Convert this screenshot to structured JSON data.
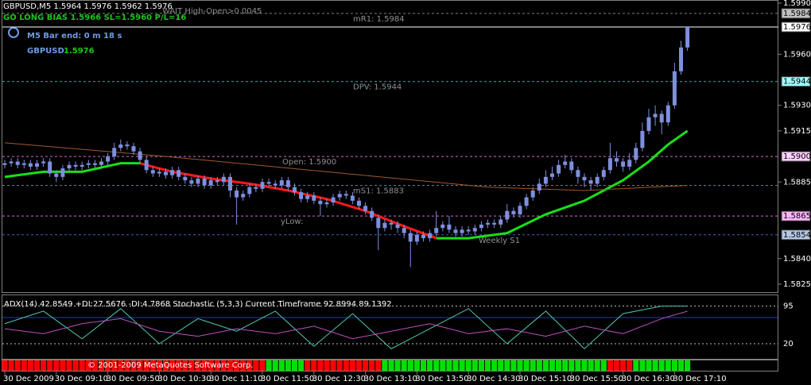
{
  "chart_data": {
    "type": "candlestick",
    "title": "GBPUSD,M5  1.5964 1.5976 1.5962 1.5976",
    "annotations": [
      {
        "text": "WAIT High-Open>0.0045",
        "color": "#8c8c8c"
      },
      {
        "text": "GO LONG BIAS 1.5966 SL=1.5960 P/L=16",
        "color": "#18c818"
      },
      {
        "text": "M5 Bar end: 0 m 18 s",
        "color": "#6f9be6"
      },
      {
        "text": "GBPUSD",
        "color": "#6f9be6"
      },
      {
        "text": "1.5976",
        "color": "#18c818"
      }
    ],
    "color": "#7f8fdf",
    "ylim": [
      1.5825,
      1.599
    ],
    "yticks": [
      {
        "value": 1.599,
        "label": "1.5990"
      },
      {
        "value": 1.596,
        "label": "1.5960"
      },
      {
        "value": 1.593,
        "label": "1.5930"
      },
      {
        "value": 1.5915,
        "label": "1.5915"
      },
      {
        "value": 1.5885,
        "label": "1.5885"
      },
      {
        "value": 1.584,
        "label": "1.5840"
      },
      {
        "value": 1.5825,
        "label": "1.5825"
      }
    ],
    "markers": [
      {
        "value": 1.5984,
        "label": "1.5984",
        "color": "#c0c0c0"
      },
      {
        "value": 1.5976,
        "label": "1.5976",
        "color": "#ffffff"
      },
      {
        "value": 1.5944,
        "label": "1.5944",
        "color": "#a0ffff"
      },
      {
        "value": 1.59,
        "label": "1.5900",
        "color": "#ffd0ff"
      },
      {
        "value": 1.5865,
        "label": "1.5865",
        "color": "#ffb4ff"
      },
      {
        "value": 1.5854,
        "label": "1.5854",
        "color": "#b4c8e6"
      }
    ],
    "levels": [
      {
        "value": 1.5984,
        "label": "mR1: 1.5984",
        "color": "#808080",
        "lx": 480
      },
      {
        "value": 1.5976,
        "color": "#ffffff"
      },
      {
        "value": 1.5944,
        "label": "DPV: 1.5944",
        "color": "#30b0b0"
      },
      {
        "value": 1.59,
        "label": "Open: 1.5900",
        "color": "#d070d0"
      },
      {
        "value": 1.5883,
        "label": "mS1: 1.5883",
        "color": "#7080a0"
      },
      {
        "value": 1.5865,
        "label": "yLow:",
        "color": "#d070d0"
      },
      {
        "value": 1.5854,
        "label": "Weekly S1",
        "color": "#4060c0"
      }
    ],
    "x_labels": [
      "30 Dec 2009",
      "30 Dec 09:10",
      "30 Dec 09:50",
      "30 Dec 10:30",
      "30 Dec 11:10",
      "30 Dec 11:50",
      "30 Dec 12:30",
      "30 Dec 13:10",
      "30 Dec 13:50",
      "30 Dec 14:30",
      "30 Dec 15:10",
      "30 Dec 15:50",
      "30 Dec 16:30",
      "30 Dec 17:10"
    ],
    "ohlc": [
      [
        1.5895,
        1.5898,
        1.5893,
        1.5896
      ],
      [
        1.5896,
        1.5899,
        1.5894,
        1.5897
      ],
      [
        1.5897,
        1.5899,
        1.5893,
        1.5895
      ],
      [
        1.5895,
        1.5898,
        1.5893,
        1.5896
      ],
      [
        1.5896,
        1.5898,
        1.5892,
        1.5894
      ],
      [
        1.5894,
        1.5898,
        1.5892,
        1.5896
      ],
      [
        1.5896,
        1.5899,
        1.5894,
        1.5897
      ],
      [
        1.5897,
        1.5899,
        1.5888,
        1.589
      ],
      [
        1.589,
        1.5892,
        1.5885,
        1.5888
      ],
      [
        1.5888,
        1.5895,
        1.5886,
        1.5893
      ],
      [
        1.5893,
        1.5897,
        1.5891,
        1.5895
      ],
      [
        1.5895,
        1.5897,
        1.5892,
        1.5894
      ],
      [
        1.5894,
        1.5897,
        1.5892,
        1.5895
      ],
      [
        1.5895,
        1.5898,
        1.5893,
        1.5896
      ],
      [
        1.5896,
        1.5898,
        1.5893,
        1.5895
      ],
      [
        1.5895,
        1.5899,
        1.5893,
        1.5897
      ],
      [
        1.5897,
        1.5902,
        1.5895,
        1.59
      ],
      [
        1.59,
        1.5908,
        1.5898,
        1.5905
      ],
      [
        1.5905,
        1.591,
        1.5903,
        1.5907
      ],
      [
        1.5907,
        1.5909,
        1.5904,
        1.5906
      ],
      [
        1.5906,
        1.5908,
        1.5901,
        1.5903
      ],
      [
        1.5903,
        1.5905,
        1.5896,
        1.5898
      ],
      [
        1.5898,
        1.59,
        1.589,
        1.5892
      ],
      [
        1.5892,
        1.5894,
        1.5888,
        1.589
      ],
      [
        1.589,
        1.5893,
        1.5888,
        1.5891
      ],
      [
        1.5891,
        1.5893,
        1.5887,
        1.5889
      ],
      [
        1.5889,
        1.5894,
        1.5887,
        1.5892
      ],
      [
        1.5892,
        1.5894,
        1.5886,
        1.5888
      ],
      [
        1.5888,
        1.589,
        1.5884,
        1.5886
      ],
      [
        1.5886,
        1.5888,
        1.5882,
        1.5884
      ],
      [
        1.5884,
        1.5889,
        1.5882,
        1.5887
      ],
      [
        1.5887,
        1.5889,
        1.5881,
        1.5883
      ],
      [
        1.5883,
        1.5888,
        1.5881,
        1.5886
      ],
      [
        1.5886,
        1.5888,
        1.5883,
        1.5885
      ],
      [
        1.5885,
        1.589,
        1.5883,
        1.5888
      ],
      [
        1.5888,
        1.589,
        1.5876,
        1.588
      ],
      [
        1.588,
        1.5882,
        1.586,
        1.5876
      ],
      [
        1.5876,
        1.588,
        1.5874,
        1.5878
      ],
      [
        1.5878,
        1.5884,
        1.5876,
        1.5882
      ],
      [
        1.5882,
        1.5884,
        1.5879,
        1.5881
      ],
      [
        1.5881,
        1.5887,
        1.5879,
        1.5885
      ],
      [
        1.5885,
        1.5887,
        1.5882,
        1.5884
      ],
      [
        1.5884,
        1.5886,
        1.5881,
        1.5883
      ],
      [
        1.5883,
        1.5888,
        1.5881,
        1.5886
      ],
      [
        1.5886,
        1.5888,
        1.588,
        1.5882
      ],
      [
        1.5882,
        1.5884,
        1.5877,
        1.5879
      ],
      [
        1.5879,
        1.5881,
        1.5873,
        1.5875
      ],
      [
        1.5875,
        1.5879,
        1.5873,
        1.5877
      ],
      [
        1.5877,
        1.5879,
        1.5872,
        1.5874
      ],
      [
        1.5874,
        1.5876,
        1.5865,
        1.5872
      ],
      [
        1.5872,
        1.5875,
        1.587,
        1.5873
      ],
      [
        1.5873,
        1.5878,
        1.5871,
        1.5876
      ],
      [
        1.5876,
        1.588,
        1.5874,
        1.5878
      ],
      [
        1.5878,
        1.588,
        1.5875,
        1.5877
      ],
      [
        1.5877,
        1.5879,
        1.5872,
        1.5874
      ],
      [
        1.5874,
        1.5876,
        1.5869,
        1.5871
      ],
      [
        1.5871,
        1.5873,
        1.5866,
        1.5868
      ],
      [
        1.5868,
        1.587,
        1.5862,
        1.5864
      ],
      [
        1.5864,
        1.5866,
        1.5845,
        1.5858
      ],
      [
        1.5858,
        1.5863,
        1.5856,
        1.5861
      ],
      [
        1.5861,
        1.5863,
        1.5857,
        1.586
      ],
      [
        1.586,
        1.5862,
        1.5855,
        1.5858
      ],
      [
        1.5858,
        1.586,
        1.5852,
        1.5855
      ],
      [
        1.5855,
        1.5857,
        1.5835,
        1.585
      ],
      [
        1.585,
        1.5856,
        1.5848,
        1.5854
      ],
      [
        1.5854,
        1.5856,
        1.585,
        1.5852
      ],
      [
        1.5852,
        1.5857,
        1.585,
        1.5855
      ],
      [
        1.5855,
        1.5868,
        1.5853,
        1.5858
      ],
      [
        1.5858,
        1.5862,
        1.5856,
        1.586
      ],
      [
        1.586,
        1.5865,
        1.5855,
        1.5857
      ],
      [
        1.5857,
        1.5859,
        1.5853,
        1.5855
      ],
      [
        1.5855,
        1.5859,
        1.5853,
        1.5857
      ],
      [
        1.5857,
        1.5859,
        1.5854,
        1.5856
      ],
      [
        1.5856,
        1.586,
        1.5854,
        1.5858
      ],
      [
        1.5858,
        1.5862,
        1.5856,
        1.586
      ],
      [
        1.586,
        1.5863,
        1.5858,
        1.5861
      ],
      [
        1.5861,
        1.5863,
        1.5858,
        1.586
      ],
      [
        1.586,
        1.5865,
        1.5858,
        1.5863
      ],
      [
        1.5863,
        1.5872,
        1.5861,
        1.5868
      ],
      [
        1.5868,
        1.587,
        1.5864,
        1.5866
      ],
      [
        1.5866,
        1.5873,
        1.5864,
        1.5871
      ],
      [
        1.5871,
        1.5878,
        1.5869,
        1.5876
      ],
      [
        1.5876,
        1.5882,
        1.5874,
        1.588
      ],
      [
        1.588,
        1.5887,
        1.5878,
        1.5884
      ],
      [
        1.5884,
        1.5892,
        1.5882,
        1.5888
      ],
      [
        1.5888,
        1.5894,
        1.5886,
        1.589
      ],
      [
        1.589,
        1.5898,
        1.5888,
        1.5895
      ],
      [
        1.5895,
        1.5901,
        1.5893,
        1.5897
      ],
      [
        1.5897,
        1.5899,
        1.589,
        1.5892
      ],
      [
        1.5892,
        1.5894,
        1.5884,
        1.5888
      ],
      [
        1.5888,
        1.589,
        1.5882,
        1.5886
      ],
      [
        1.5886,
        1.5888,
        1.588,
        1.5884
      ],
      [
        1.5884,
        1.589,
        1.5882,
        1.5888
      ],
      [
        1.5888,
        1.5894,
        1.5886,
        1.5892
      ],
      [
        1.5892,
        1.5908,
        1.589,
        1.5899
      ],
      [
        1.5899,
        1.5903,
        1.5894,
        1.5897
      ],
      [
        1.5897,
        1.5899,
        1.5891,
        1.5894
      ],
      [
        1.5894,
        1.5902,
        1.5892,
        1.5898
      ],
      [
        1.5898,
        1.5908,
        1.5896,
        1.5905
      ],
      [
        1.5905,
        1.592,
        1.5903,
        1.5915
      ],
      [
        1.5915,
        1.5928,
        1.5913,
        1.5923
      ],
      [
        1.5923,
        1.593,
        1.5918,
        1.5925
      ],
      [
        1.5925,
        1.5927,
        1.5913,
        1.592
      ],
      [
        1.592,
        1.5932,
        1.5918,
        1.593
      ],
      [
        1.593,
        1.5955,
        1.5928,
        1.595
      ],
      [
        1.595,
        1.5968,
        1.5948,
        1.5964
      ],
      [
        1.5964,
        1.5976,
        1.5962,
        1.5976
      ]
    ],
    "overlays": [
      {
        "color": "#18e018",
        "width": 3,
        "x": [
          0,
          6,
          12,
          18,
          21,
          26,
          32,
          38,
          44,
          50,
          56,
          62,
          67,
          72,
          78,
          84,
          90,
          96,
          100,
          103,
          106
        ],
        "values": [
          1.5888,
          1.5891,
          1.5891,
          1.5896,
          1.5896,
          null,
          null,
          null,
          null,
          null,
          null,
          null,
          1.5852,
          1.5852,
          1.5855,
          1.5866,
          1.5874,
          1.5886,
          1.5897,
          1.5907,
          1.5915
        ]
      },
      {
        "color": "#ff1818",
        "width": 3,
        "x": [
          0,
          6,
          12,
          18,
          21,
          26,
          32,
          38,
          44,
          50,
          56,
          62,
          67,
          72,
          78,
          84,
          90,
          96,
          100,
          103,
          106
        ],
        "values": [
          null,
          null,
          null,
          null,
          1.5896,
          1.5891,
          1.5887,
          1.5884,
          1.588,
          1.5875,
          1.5868,
          1.5859,
          1.5852,
          null,
          null,
          null,
          null,
          null,
          null,
          null,
          null
        ]
      },
      {
        "color": "#a05a2c",
        "width": 1,
        "x": [
          0,
          25,
          50,
          75,
          90,
          106
        ],
        "values": [
          1.5908,
          1.59,
          1.5891,
          1.5882,
          1.588,
          1.5883
        ]
      }
    ],
    "sub": {
      "title": "ADX(14) 42.8549 +DI:27.5676 -DI:4.7868 Stochastic (5,3,3) Current Timeframe 92.8994 89.1392",
      "ylim": [
        -10,
        115
      ],
      "yticks": [
        95,
        20
      ],
      "series": [
        {
          "color": "#50c8b4",
          "x": [
            0,
            6,
            12,
            18,
            24,
            30,
            36,
            42,
            48,
            54,
            60,
            66,
            72,
            78,
            84,
            90,
            96,
            102,
            106
          ],
          "values": [
            60,
            85,
            30,
            90,
            20,
            70,
            45,
            85,
            15,
            80,
            10,
            50,
            90,
            20,
            85,
            10,
            80,
            95,
            95
          ]
        },
        {
          "color": "#c050c0",
          "x": [
            0,
            6,
            12,
            18,
            24,
            30,
            36,
            42,
            48,
            54,
            60,
            66,
            72,
            78,
            84,
            90,
            96,
            102,
            106
          ],
          "values": [
            50,
            40,
            60,
            70,
            45,
            35,
            50,
            40,
            55,
            30,
            45,
            60,
            40,
            50,
            35,
            55,
            40,
            70,
            85
          ]
        }
      ]
    },
    "strip": [
      {
        "color": "#ff0000",
        "count": 41
      },
      {
        "color": "#00e000",
        "count": 6
      },
      {
        "color": "#ff0000",
        "count": 12
      },
      {
        "color": "#00e000",
        "count": 35
      },
      {
        "color": "#ff0000",
        "count": 4
      },
      {
        "color": "#00e000",
        "count": 9
      }
    ],
    "footer": "© 2001-2009 MetaQuotes Software Corp."
  }
}
